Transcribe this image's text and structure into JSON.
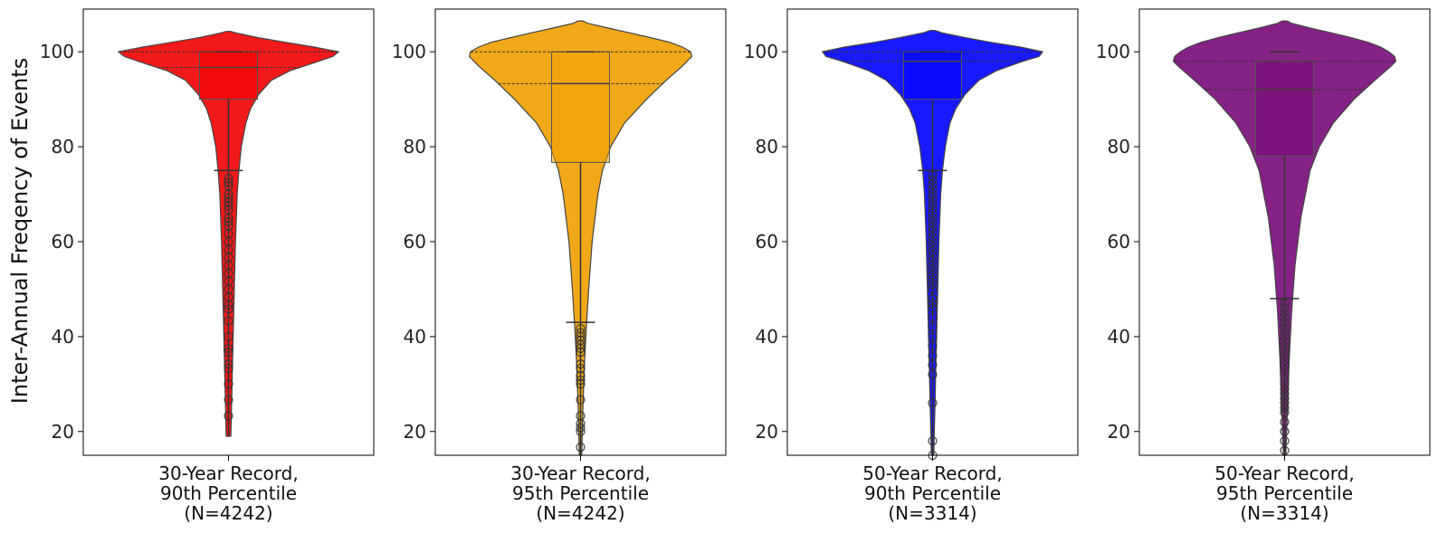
{
  "chart_data": {
    "type": "violin",
    "ylabel": "Inter-Annual Freqency of Events",
    "ylim": [
      15,
      109
    ],
    "yticks": [
      20,
      40,
      60,
      80,
      100
    ],
    "grid": false,
    "panels": [
      {
        "label_lines": [
          "30-Year Record,",
          "90th Percentile",
          "(N=4242)"
        ],
        "color": "#f00000",
        "box": {
          "q1": 90,
          "median": 96.7,
          "q3": 100,
          "whisker_low": 75,
          "whisker_high": 100,
          "min": 19
        },
        "violin_top": 104.3,
        "profile": [
          [
            19,
            0.02
          ],
          [
            35,
            0.035
          ],
          [
            50,
            0.05
          ],
          [
            60,
            0.06
          ],
          [
            70,
            0.075
          ],
          [
            75,
            0.09
          ],
          [
            80,
            0.11
          ],
          [
            85,
            0.15
          ],
          [
            88,
            0.19
          ],
          [
            91,
            0.26
          ],
          [
            94,
            0.37
          ],
          [
            96,
            0.53
          ],
          [
            98,
            0.78
          ],
          [
            99,
            0.9
          ],
          [
            100,
            0.95
          ],
          [
            101,
            0.74
          ],
          [
            102,
            0.49
          ],
          [
            103,
            0.25
          ],
          [
            104,
            0.06
          ],
          [
            104.3,
            0.02
          ]
        ],
        "outliers": [
          23.3,
          26.7,
          30,
          33.3,
          34.2,
          36.7,
          37.5,
          40,
          43.3,
          45.8,
          46.7,
          48.3,
          50,
          51.7,
          53.3,
          55,
          56.7,
          58.3,
          60,
          61.7,
          63.3,
          64.2,
          65,
          66.7,
          67.5,
          68.3,
          69.2,
          70,
          71.7,
          72.5,
          73.3
        ]
      },
      {
        "label_lines": [
          "30-Year Record,",
          "95th Percentile",
          "(N=4242)"
        ],
        "color": "#f0a000",
        "box": {
          "q1": 76.7,
          "median": 93.3,
          "q3": 100,
          "whisker_low": 43,
          "whisker_high": 100,
          "min": 15
        },
        "violin_top": 106.5,
        "profile": [
          [
            15,
            0.01
          ],
          [
            25,
            0.02
          ],
          [
            35,
            0.035
          ],
          [
            42,
            0.05
          ],
          [
            50,
            0.07
          ],
          [
            60,
            0.1
          ],
          [
            70,
            0.15
          ],
          [
            75,
            0.19
          ],
          [
            80,
            0.26
          ],
          [
            85,
            0.38
          ],
          [
            90,
            0.57
          ],
          [
            94,
            0.74
          ],
          [
            97,
            0.88
          ],
          [
            99,
            0.96
          ],
          [
            100,
            0.95
          ],
          [
            101,
            0.88
          ],
          [
            102,
            0.77
          ],
          [
            103,
            0.6
          ],
          [
            104,
            0.42
          ],
          [
            105,
            0.24
          ],
          [
            106,
            0.06
          ],
          [
            106.5,
            0.02
          ]
        ],
        "outliers": [
          16.7,
          20,
          20.8,
          21.7,
          23.3,
          26.7,
          30,
          30.8,
          31.7,
          33.3,
          34.2,
          36.7,
          37.5,
          38.3,
          39.2,
          40,
          40.8,
          41.7
        ]
      },
      {
        "label_lines": [
          "50-Year Record,",
          "90th Percentile",
          "(N=3314)"
        ],
        "color": "#0000ff",
        "box": {
          "q1": 90,
          "median": 98,
          "q3": 100,
          "whisker_low": 75,
          "whisker_high": 100,
          "min": 15
        },
        "violin_top": 104.5,
        "profile": [
          [
            15,
            0.01
          ],
          [
            30,
            0.025
          ],
          [
            45,
            0.04
          ],
          [
            60,
            0.055
          ],
          [
            70,
            0.07
          ],
          [
            75,
            0.085
          ],
          [
            80,
            0.11
          ],
          [
            85,
            0.15
          ],
          [
            88,
            0.2
          ],
          [
            91,
            0.28
          ],
          [
            94,
            0.4
          ],
          [
            96,
            0.55
          ],
          [
            98,
            0.78
          ],
          [
            99,
            0.92
          ],
          [
            100,
            0.95
          ],
          [
            101,
            0.76
          ],
          [
            102,
            0.5
          ],
          [
            103,
            0.28
          ],
          [
            104,
            0.08
          ],
          [
            104.5,
            0.02
          ]
        ],
        "outliers": [
          15,
          18,
          26,
          32,
          34,
          36,
          38,
          40,
          42,
          44,
          46,
          47,
          48,
          50,
          51,
          52,
          53,
          54,
          55,
          56,
          57,
          58,
          59,
          60,
          61,
          62,
          63,
          64,
          65,
          66,
          67,
          68,
          69,
          70,
          71,
          72,
          73,
          74
        ]
      },
      {
        "label_lines": [
          "50-Year Record,",
          "95th Percentile",
          "(N=3314)"
        ],
        "color": "#780a78",
        "box": {
          "q1": 78,
          "median": 92,
          "q3": 98,
          "whisker_low": 48,
          "whisker_high": 100,
          "min": 15
        },
        "violin_top": 106.5,
        "profile": [
          [
            15,
            0.01
          ],
          [
            25,
            0.025
          ],
          [
            35,
            0.04
          ],
          [
            45,
            0.06
          ],
          [
            55,
            0.09
          ],
          [
            65,
            0.14
          ],
          [
            75,
            0.22
          ],
          [
            80,
            0.3
          ],
          [
            85,
            0.42
          ],
          [
            90,
            0.6
          ],
          [
            94,
            0.78
          ],
          [
            97,
            0.92
          ],
          [
            98,
            0.96
          ],
          [
            99,
            0.95
          ],
          [
            100,
            0.9
          ],
          [
            101,
            0.83
          ],
          [
            102,
            0.72
          ],
          [
            103,
            0.57
          ],
          [
            104,
            0.4
          ],
          [
            105,
            0.22
          ],
          [
            106,
            0.06
          ],
          [
            106.5,
            0.02
          ]
        ],
        "outliers": [
          16,
          18,
          20,
          22,
          24,
          25,
          26,
          27,
          28,
          29,
          30,
          31,
          32,
          33,
          34,
          35,
          36,
          37,
          38,
          39,
          40,
          41,
          42,
          43,
          44,
          45,
          46,
          47
        ]
      }
    ]
  }
}
